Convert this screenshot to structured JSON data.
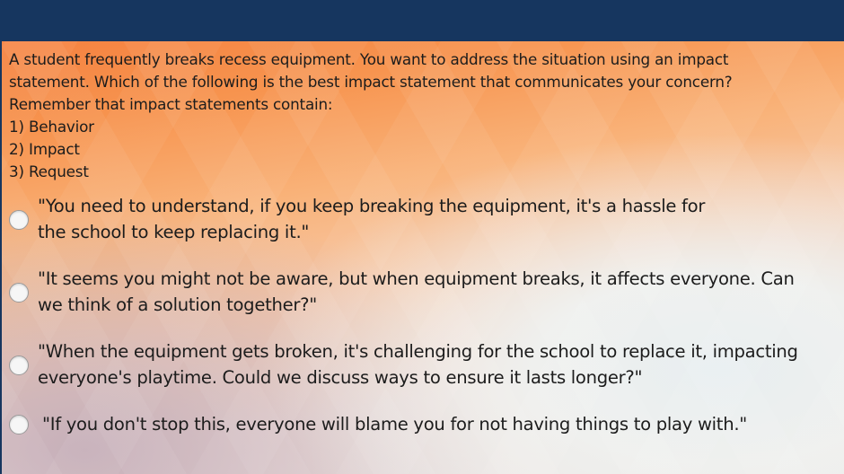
{
  "question": {
    "lines": [
      "A student frequently breaks recess equipment. You want to address the situation using an impact",
      "statement. Which of the following is the best impact statement that communicates your concern?",
      "Remember that impact statements contain:",
      "1) Behavior",
      "2) Impact",
      "3) Request"
    ]
  },
  "choices": [
    {
      "lines": [
        "\"You need to understand, if you keep breaking the equipment, it's a hassle for",
        "the school to keep replacing it.\""
      ],
      "selected": false
    },
    {
      "lines": [
        "\"It seems you might not be aware, but when equipment breaks, it affects everyone. Can",
        "we think of a solution together?\""
      ],
      "selected": false
    },
    {
      "lines": [
        "\"When the equipment gets broken, it's challenging for the school to replace it, impacting",
        "everyone's playtime. Could we discuss ways to ensure it lasts longer?\""
      ],
      "selected": false
    },
    {
      "lines": [
        "\"If you don't stop this, everyone will blame you for not having things to play with.\""
      ],
      "selected": false
    }
  ],
  "colors": {
    "header": "#16365f",
    "radio_fill": "#f6f6f6",
    "radio_border": "#9a9a9a"
  }
}
